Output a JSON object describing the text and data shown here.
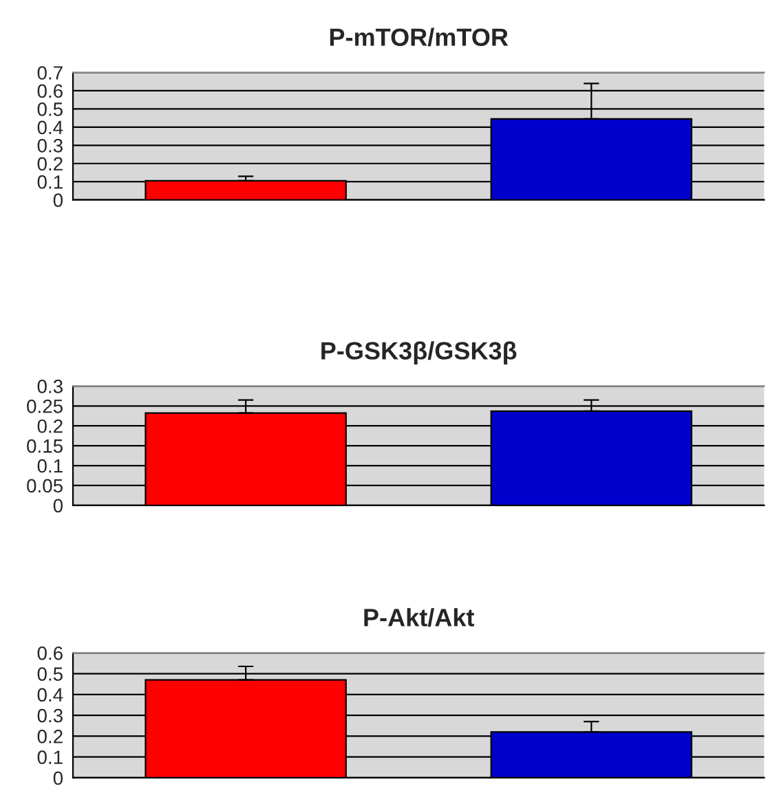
{
  "chart_data": [
    {
      "type": "bar",
      "title": "P-mTOR/mTOR",
      "categories": [
        null,
        null
      ],
      "values": [
        0.105,
        0.445
      ],
      "colors": [
        "#ff0000",
        "#0000cc"
      ],
      "errors": [
        [
          0.105,
          0.13
        ],
        [
          0.445,
          0.64
        ]
      ],
      "ylim": [
        0,
        0.7
      ],
      "yticks": [
        0,
        0.1,
        0.2,
        0.3,
        0.4,
        0.5,
        0.6,
        0.7
      ],
      "grid": "y"
    },
    {
      "type": "bar",
      "title": "P-GSK3β/GSK3β",
      "categories": [
        null,
        null
      ],
      "values": [
        0.232,
        0.237
      ],
      "colors": [
        "#ff0000",
        "#0000cc"
      ],
      "errors": [
        [
          0.232,
          0.265
        ],
        [
          0.237,
          0.265
        ]
      ],
      "ylim": [
        0,
        0.3
      ],
      "yticks": [
        0,
        0.05,
        0.1,
        0.15,
        0.2,
        0.25,
        0.3
      ],
      "grid": "y"
    },
    {
      "type": "bar",
      "title": "P-Akt/Akt",
      "categories": [
        null,
        null
      ],
      "values": [
        0.47,
        0.22
      ],
      "colors": [
        "#ff0000",
        "#0000cc"
      ],
      "errors": [
        [
          0.47,
          0.535
        ],
        [
          0.22,
          0.27
        ]
      ],
      "ylim": [
        0,
        0.6
      ],
      "yticks": [
        0,
        0.1,
        0.2,
        0.3,
        0.4,
        0.5,
        0.6
      ],
      "grid": "y"
    }
  ]
}
